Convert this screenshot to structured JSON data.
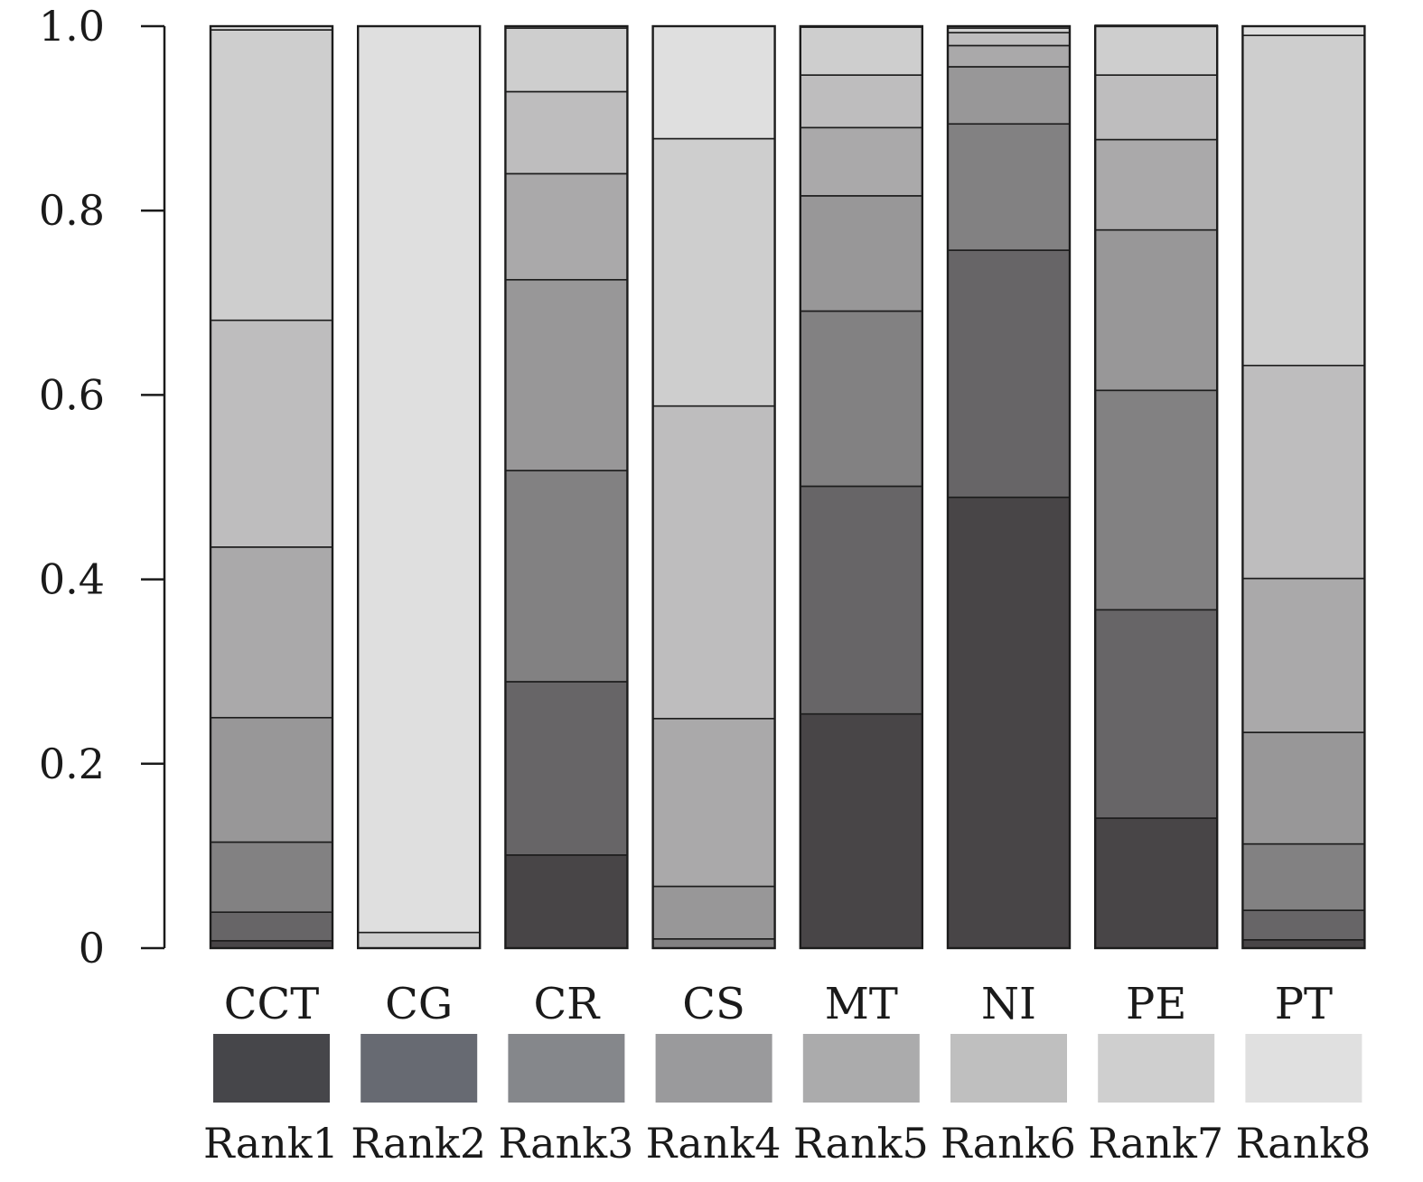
{
  "chart_data": {
    "type": "bar",
    "stacked": true,
    "title": "",
    "xlabel": "",
    "ylabel": "",
    "ylim": [
      0,
      1
    ],
    "yticks": [
      {
        "value": 0,
        "label": "0"
      },
      {
        "value": 0.2,
        "label": "0.2"
      },
      {
        "value": 0.4,
        "label": "0.4"
      },
      {
        "value": 0.6,
        "label": "0.6"
      },
      {
        "value": 0.8,
        "label": "0.8"
      },
      {
        "value": 1,
        "label": "1.0"
      }
    ],
    "grid": false,
    "legend_position": "bottom",
    "categories": [
      "CCT",
      "CG",
      "CR",
      "CS",
      "MT",
      "NI",
      "PE",
      "PT"
    ],
    "series": [
      {
        "name": "Rank1",
        "color": "#484547",
        "values": [
          0.008,
          0.0,
          0.101,
          0.0,
          0.254,
          0.489,
          0.141,
          0.009
        ]
      },
      {
        "name": "Rank2",
        "color": "#676567",
        "values": [
          0.031,
          0.0,
          0.188,
          0.0,
          0.247,
          0.268,
          0.226,
          0.032
        ]
      },
      {
        "name": "Rank3",
        "color": "#828182",
        "values": [
          0.076,
          0.0,
          0.229,
          0.01,
          0.19,
          0.137,
          0.238,
          0.072
        ]
      },
      {
        "name": "Rank4",
        "color": "#989798",
        "values": [
          0.135,
          0.0,
          0.207,
          0.057,
          0.125,
          0.062,
          0.174,
          0.121
        ]
      },
      {
        "name": "Rank5",
        "color": "#aaa9aa",
        "values": [
          0.185,
          0.0,
          0.115,
          0.182,
          0.074,
          0.023,
          0.098,
          0.167
        ]
      },
      {
        "name": "Rank6",
        "color": "#bebdbe",
        "values": [
          0.246,
          0.0,
          0.089,
          0.339,
          0.057,
          0.014,
          0.07,
          0.231
        ]
      },
      {
        "name": "Rank7",
        "color": "#cecece",
        "values": [
          0.315,
          0.017,
          0.069,
          0.29,
          0.052,
          0.005,
          0.054,
          0.358
        ]
      },
      {
        "name": "Rank8",
        "color": "#dfdfdf",
        "values": [
          0.004,
          0.983,
          0.002,
          0.122,
          0.001,
          0.002,
          0.0,
          0.01
        ]
      }
    ],
    "legend": [
      {
        "label": "Rank1",
        "color": "#46464a"
      },
      {
        "label": "Rank2",
        "color": "#676a72"
      },
      {
        "label": "Rank3",
        "color": "#85878b"
      },
      {
        "label": "Rank4",
        "color": "#9a9a9c"
      },
      {
        "label": "Rank5",
        "color": "#ababac"
      },
      {
        "label": "Rank6",
        "color": "#bfbfbf"
      },
      {
        "label": "Rank7",
        "color": "#cfcfcf"
      },
      {
        "label": "Rank8",
        "color": "#e0e0e0"
      }
    ]
  }
}
